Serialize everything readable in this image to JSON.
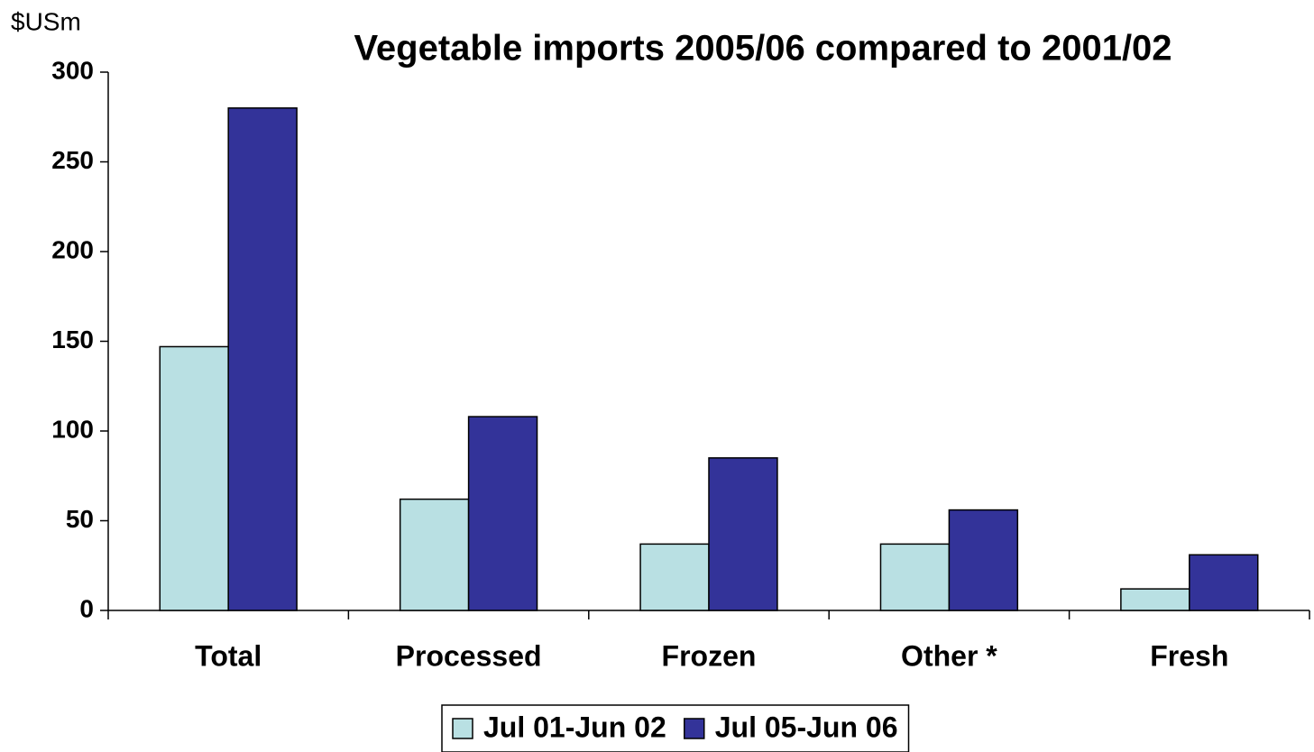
{
  "chart_data": {
    "type": "bar",
    "title": "Vegetable imports 2005/06 compared to 2001/02",
    "y_label": "$USm",
    "categories": [
      "Total",
      "Processed",
      "Frozen",
      "Other *",
      "Fresh"
    ],
    "series": [
      {
        "name": "Jul 01-Jun 02",
        "color": "#b9e0e3",
        "values": [
          147,
          62,
          37,
          37,
          12
        ]
      },
      {
        "name": "Jul 05-Jun 06",
        "color": "#333399",
        "values": [
          280,
          108,
          85,
          56,
          31
        ]
      }
    ],
    "ylim": [
      0,
      300
    ],
    "yticks": [
      0,
      50,
      100,
      150,
      200,
      250,
      300
    ],
    "grid": false,
    "legend": "bottom"
  }
}
